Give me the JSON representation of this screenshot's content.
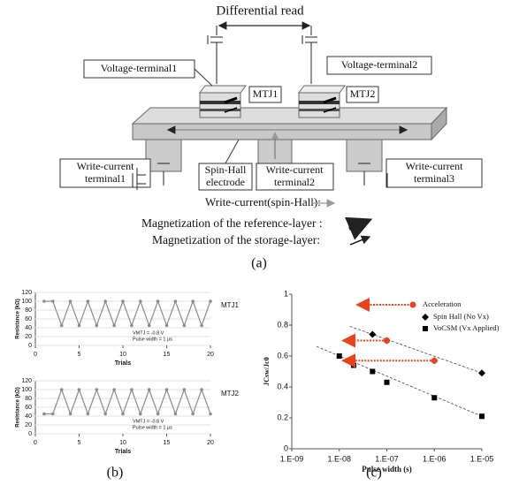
{
  "diagram": {
    "heading": "Differential read",
    "voltage_terminals": [
      "Voltage-terminal1",
      "Voltage-terminal2"
    ],
    "mtjs": [
      "MTJ1",
      "MTJ2"
    ],
    "write_terminal1": [
      "Write-current",
      "terminal1"
    ],
    "spin_hall_electrode": [
      "Spin-Hall",
      "electrode"
    ],
    "write_terminal2": [
      "Write-current",
      "terminal2"
    ],
    "write_terminal3": [
      "Write-current",
      "terminal3"
    ],
    "legend": [
      "Write-current(spin-Hall):",
      "Magnetization of the reference-layer :",
      "Magnetization of the storage-layer:"
    ]
  },
  "panels": [
    "(a)",
    "(b)",
    "(c)"
  ],
  "chart_data": [
    {
      "type": "line",
      "title": "MTJ1",
      "xlabel": "Trials",
      "ylabel": "Resistance (kΩ)",
      "x": [
        1,
        2,
        3,
        4,
        5,
        6,
        7,
        8,
        9,
        10,
        11,
        12,
        13,
        14,
        15,
        16,
        17,
        18,
        19,
        20
      ],
      "values": [
        100,
        100,
        45,
        100,
        45,
        100,
        45,
        100,
        45,
        100,
        45,
        100,
        45,
        100,
        45,
        100,
        45,
        100,
        45,
        100
      ],
      "color": "#8c8c8c",
      "xlim": [
        0,
        20
      ],
      "xticks": [
        0,
        5,
        10,
        15,
        20
      ],
      "ylim": [
        0,
        120
      ],
      "yticks": [
        0,
        20,
        40,
        60,
        80,
        100,
        120
      ],
      "grid": true,
      "annotations": [
        "VMTJ = -0.8 V",
        "Pulse width = 1 μs"
      ]
    },
    {
      "type": "line",
      "title": "MTJ2",
      "xlabel": "Trials",
      "ylabel": "Resistance (kΩ)",
      "x": [
        1,
        2,
        3,
        4,
        5,
        6,
        7,
        8,
        9,
        10,
        11,
        12,
        13,
        14,
        15,
        16,
        17,
        18,
        19,
        20
      ],
      "values": [
        45,
        45,
        100,
        45,
        100,
        45,
        100,
        45,
        100,
        45,
        100,
        45,
        100,
        45,
        100,
        45,
        100,
        45,
        100,
        45
      ],
      "color": "#8c8c8c",
      "xlim": [
        0,
        20
      ],
      "xticks": [
        0,
        5,
        10,
        15,
        20
      ],
      "ylim": [
        0,
        120
      ],
      "yticks": [
        0,
        20,
        40,
        60,
        80,
        100,
        120
      ],
      "grid": true,
      "annotations": [
        "VMTJ = -0.8 V",
        "Pulse width = 1 μs"
      ]
    },
    {
      "type": "scatter",
      "xlabel": "Pulse width (s)",
      "ylabel": "JCsw/Jc0",
      "log_x": true,
      "xlim": [
        1e-09,
        1e-05
      ],
      "xticks": [
        {
          "value": 1e-09,
          "label": "1.E-09"
        },
        {
          "value": 1e-08,
          "label": "1.E-08"
        },
        {
          "value": 1e-07,
          "label": "1.E-07"
        },
        {
          "value": 1e-06,
          "label": "1.E-06"
        },
        {
          "value": 1e-05,
          "label": "1.E-05"
        }
      ],
      "ylim": [
        0,
        1
      ],
      "yticks": [
        0,
        0.2,
        0.4,
        0.6,
        0.8,
        1
      ],
      "series": [
        {
          "name": "Spin Hall  (No Vx)",
          "color": "#000000",
          "marker": "diamond",
          "x": [
            5e-08,
            1e-07,
            1e-06,
            1e-05
          ],
          "values": [
            0.74,
            0.7,
            0.57,
            0.49
          ]
        },
        {
          "name": "VoCSM  (Vx Applied)",
          "color": "#000000",
          "marker": "square",
          "x": [
            1e-08,
            2e-08,
            5e-08,
            1e-07,
            1e-06,
            1e-05
          ],
          "values": [
            0.6,
            0.54,
            0.5,
            0.43,
            0.33,
            0.21
          ]
        }
      ],
      "arrow_label": "Acceleration",
      "arrow_color": "#e8431c",
      "arrows": [
        {
          "x": [
            1e-07,
            1.2e-08
          ],
          "y": 0.7
        },
        {
          "x": [
            1e-06,
            1.2e-08
          ],
          "y": 0.57
        }
      ]
    }
  ]
}
